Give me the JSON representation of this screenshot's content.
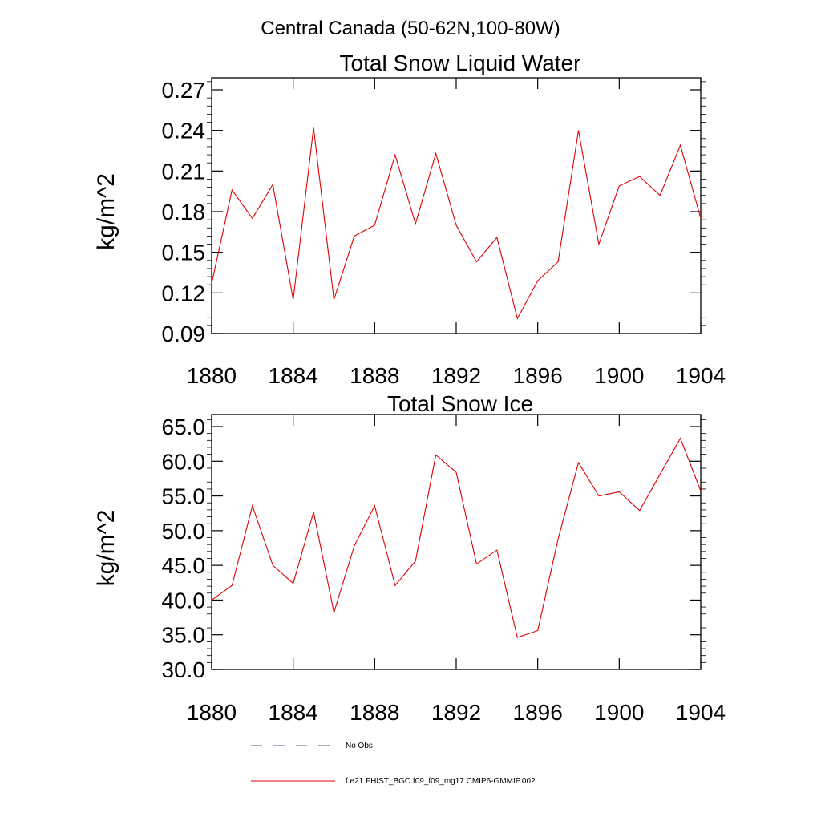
{
  "figure_title": "Central Canada (50-62N,100-80W)",
  "legend": [
    {
      "label": "No Obs",
      "style": "dashed",
      "color": "#5a5a8a"
    },
    {
      "label": "f.e21.FHIST_BGC.f09_f09_mg17.CMIP6-GMMIP.002",
      "style": "solid",
      "color": "#e00000"
    }
  ],
  "chart_data": [
    {
      "type": "line",
      "title": "Total Snow Liquid Water",
      "xlabel": "",
      "ylabel": "kg/m^2",
      "xlim": [
        1880,
        1904
      ],
      "ylim": [
        0.09,
        0.27
      ],
      "xticks": [
        1880,
        1884,
        1888,
        1892,
        1896,
        1900,
        1904
      ],
      "xtick_labels": [
        "1880",
        "1884",
        "1888",
        "1892",
        "1896",
        "1900",
        "1904"
      ],
      "yticks": [
        0.09,
        0.12,
        0.15,
        0.18,
        0.21,
        0.24,
        0.27
      ],
      "ytick_labels": [
        "0.09",
        "0.12",
        "0.15",
        "0.18",
        "0.21",
        "0.24",
        "0.27"
      ],
      "grid": false,
      "series": [
        {
          "name": "f.e21.FHIST_BGC.f09_f09_mg17.CMIP6-GMMIP.002",
          "color": "#e00000",
          "x": [
            1880,
            1881,
            1882,
            1883,
            1884,
            1885,
            1886,
            1887,
            1888,
            1889,
            1890,
            1891,
            1892,
            1893,
            1894,
            1895,
            1896,
            1897,
            1898,
            1899,
            1900,
            1901,
            1902,
            1903,
            1904
          ],
          "values": [
            0.127,
            0.196,
            0.175,
            0.2,
            0.115,
            0.242,
            0.115,
            0.162,
            0.17,
            0.222,
            0.171,
            0.223,
            0.17,
            0.143,
            0.161,
            0.101,
            0.129,
            0.143,
            0.24,
            0.156,
            0.199,
            0.206,
            0.192,
            0.229,
            0.175
          ]
        }
      ]
    },
    {
      "type": "line",
      "title": "Total Snow Ice",
      "xlabel": "",
      "ylabel": "kg/m^2",
      "xlim": [
        1880,
        1904
      ],
      "ylim": [
        30.0,
        65.0
      ],
      "xticks": [
        1880,
        1884,
        1888,
        1892,
        1896,
        1900,
        1904
      ],
      "xtick_labels": [
        "1880",
        "1884",
        "1888",
        "1892",
        "1896",
        "1900",
        "1904"
      ],
      "yticks": [
        30,
        35,
        40,
        45,
        50,
        55,
        60,
        65
      ],
      "ytick_labels": [
        "30.0",
        "35.0",
        "40.0",
        "45.0",
        "50.0",
        "55.0",
        "60.0",
        "65.0"
      ],
      "grid": false,
      "series": [
        {
          "name": "f.e21.FHIST_BGC.f09_f09_mg17.CMIP6-GMMIP.002",
          "color": "#e00000",
          "x": [
            1880,
            1881,
            1882,
            1883,
            1884,
            1885,
            1886,
            1887,
            1888,
            1889,
            1890,
            1891,
            1892,
            1893,
            1894,
            1895,
            1896,
            1897,
            1898,
            1899,
            1900,
            1901,
            1902,
            1903,
            1904
          ],
          "values": [
            40.0,
            42.1,
            53.6,
            45.0,
            42.4,
            52.7,
            38.2,
            47.8,
            53.6,
            42.1,
            45.6,
            60.9,
            58.4,
            45.2,
            47.2,
            34.6,
            35.6,
            48.8,
            59.8,
            55.0,
            55.6,
            52.9,
            58.1,
            63.3,
            55.7
          ]
        }
      ]
    }
  ]
}
